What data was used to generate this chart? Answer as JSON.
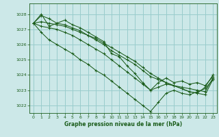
{
  "xlabel": "Graphe pression niveau de la mer (hPa)",
  "background_color": "#cce8e8",
  "plot_bg_color": "#cce8e8",
  "grid_color": "#99cccc",
  "line_color": "#1a5c1a",
  "xlim": [
    -0.5,
    23.5
  ],
  "ylim": [
    1021.5,
    1028.7
  ],
  "yticks": [
    1022,
    1023,
    1024,
    1025,
    1026,
    1027,
    1028
  ],
  "xticks": [
    0,
    1,
    2,
    3,
    4,
    5,
    6,
    7,
    8,
    9,
    10,
    11,
    12,
    13,
    14,
    15,
    16,
    17,
    18,
    19,
    20,
    21,
    22,
    23
  ],
  "series": [
    [
      1027.4,
      1028.0,
      1027.2,
      1027.4,
      1027.6,
      1027.3,
      1027.1,
      1026.8,
      1026.5,
      1026.2,
      1025.4,
      1025.2,
      1024.6,
      1024.1,
      1023.5,
      1023.0,
      1023.5,
      1023.8,
      1023.5,
      1023.6,
      1023.4,
      1023.5,
      1023.3,
      1023.9
    ],
    [
      1027.4,
      1027.9,
      1027.7,
      1027.4,
      1027.3,
      1027.1,
      1026.9,
      1026.6,
      1026.3,
      1026.0,
      1025.6,
      1025.3,
      1025.0,
      1024.7,
      1024.3,
      1023.9,
      1023.7,
      1023.5,
      1023.3,
      1023.2,
      1023.1,
      1023.0,
      1022.9,
      1023.8
    ],
    [
      1027.4,
      1027.5,
      1027.4,
      1027.3,
      1027.2,
      1027.0,
      1026.8,
      1026.6,
      1026.4,
      1026.1,
      1025.8,
      1025.5,
      1025.2,
      1024.9,
      1024.5,
      1024.1,
      1023.8,
      1023.5,
      1023.3,
      1023.1,
      1022.9,
      1022.8,
      1022.7,
      1023.7
    ],
    [
      1027.4,
      1027.2,
      1027.1,
      1027.0,
      1026.8,
      1026.6,
      1026.3,
      1026.0,
      1025.7,
      1025.4,
      1025.0,
      1024.6,
      1024.2,
      1023.8,
      1023.4,
      1023.0,
      1023.2,
      1023.4,
      1023.3,
      1023.1,
      1022.9,
      1022.8,
      1023.2,
      1024.0
    ],
    [
      1027.4,
      1026.8,
      1026.3,
      1026.0,
      1025.7,
      1025.4,
      1025.0,
      1024.7,
      1024.3,
      1024.0,
      1023.6,
      1023.2,
      1022.8,
      1022.4,
      1022.0,
      1021.6,
      1022.2,
      1022.8,
      1023.0,
      1022.8,
      1022.7,
      1022.9,
      1023.1,
      1023.7
    ]
  ]
}
